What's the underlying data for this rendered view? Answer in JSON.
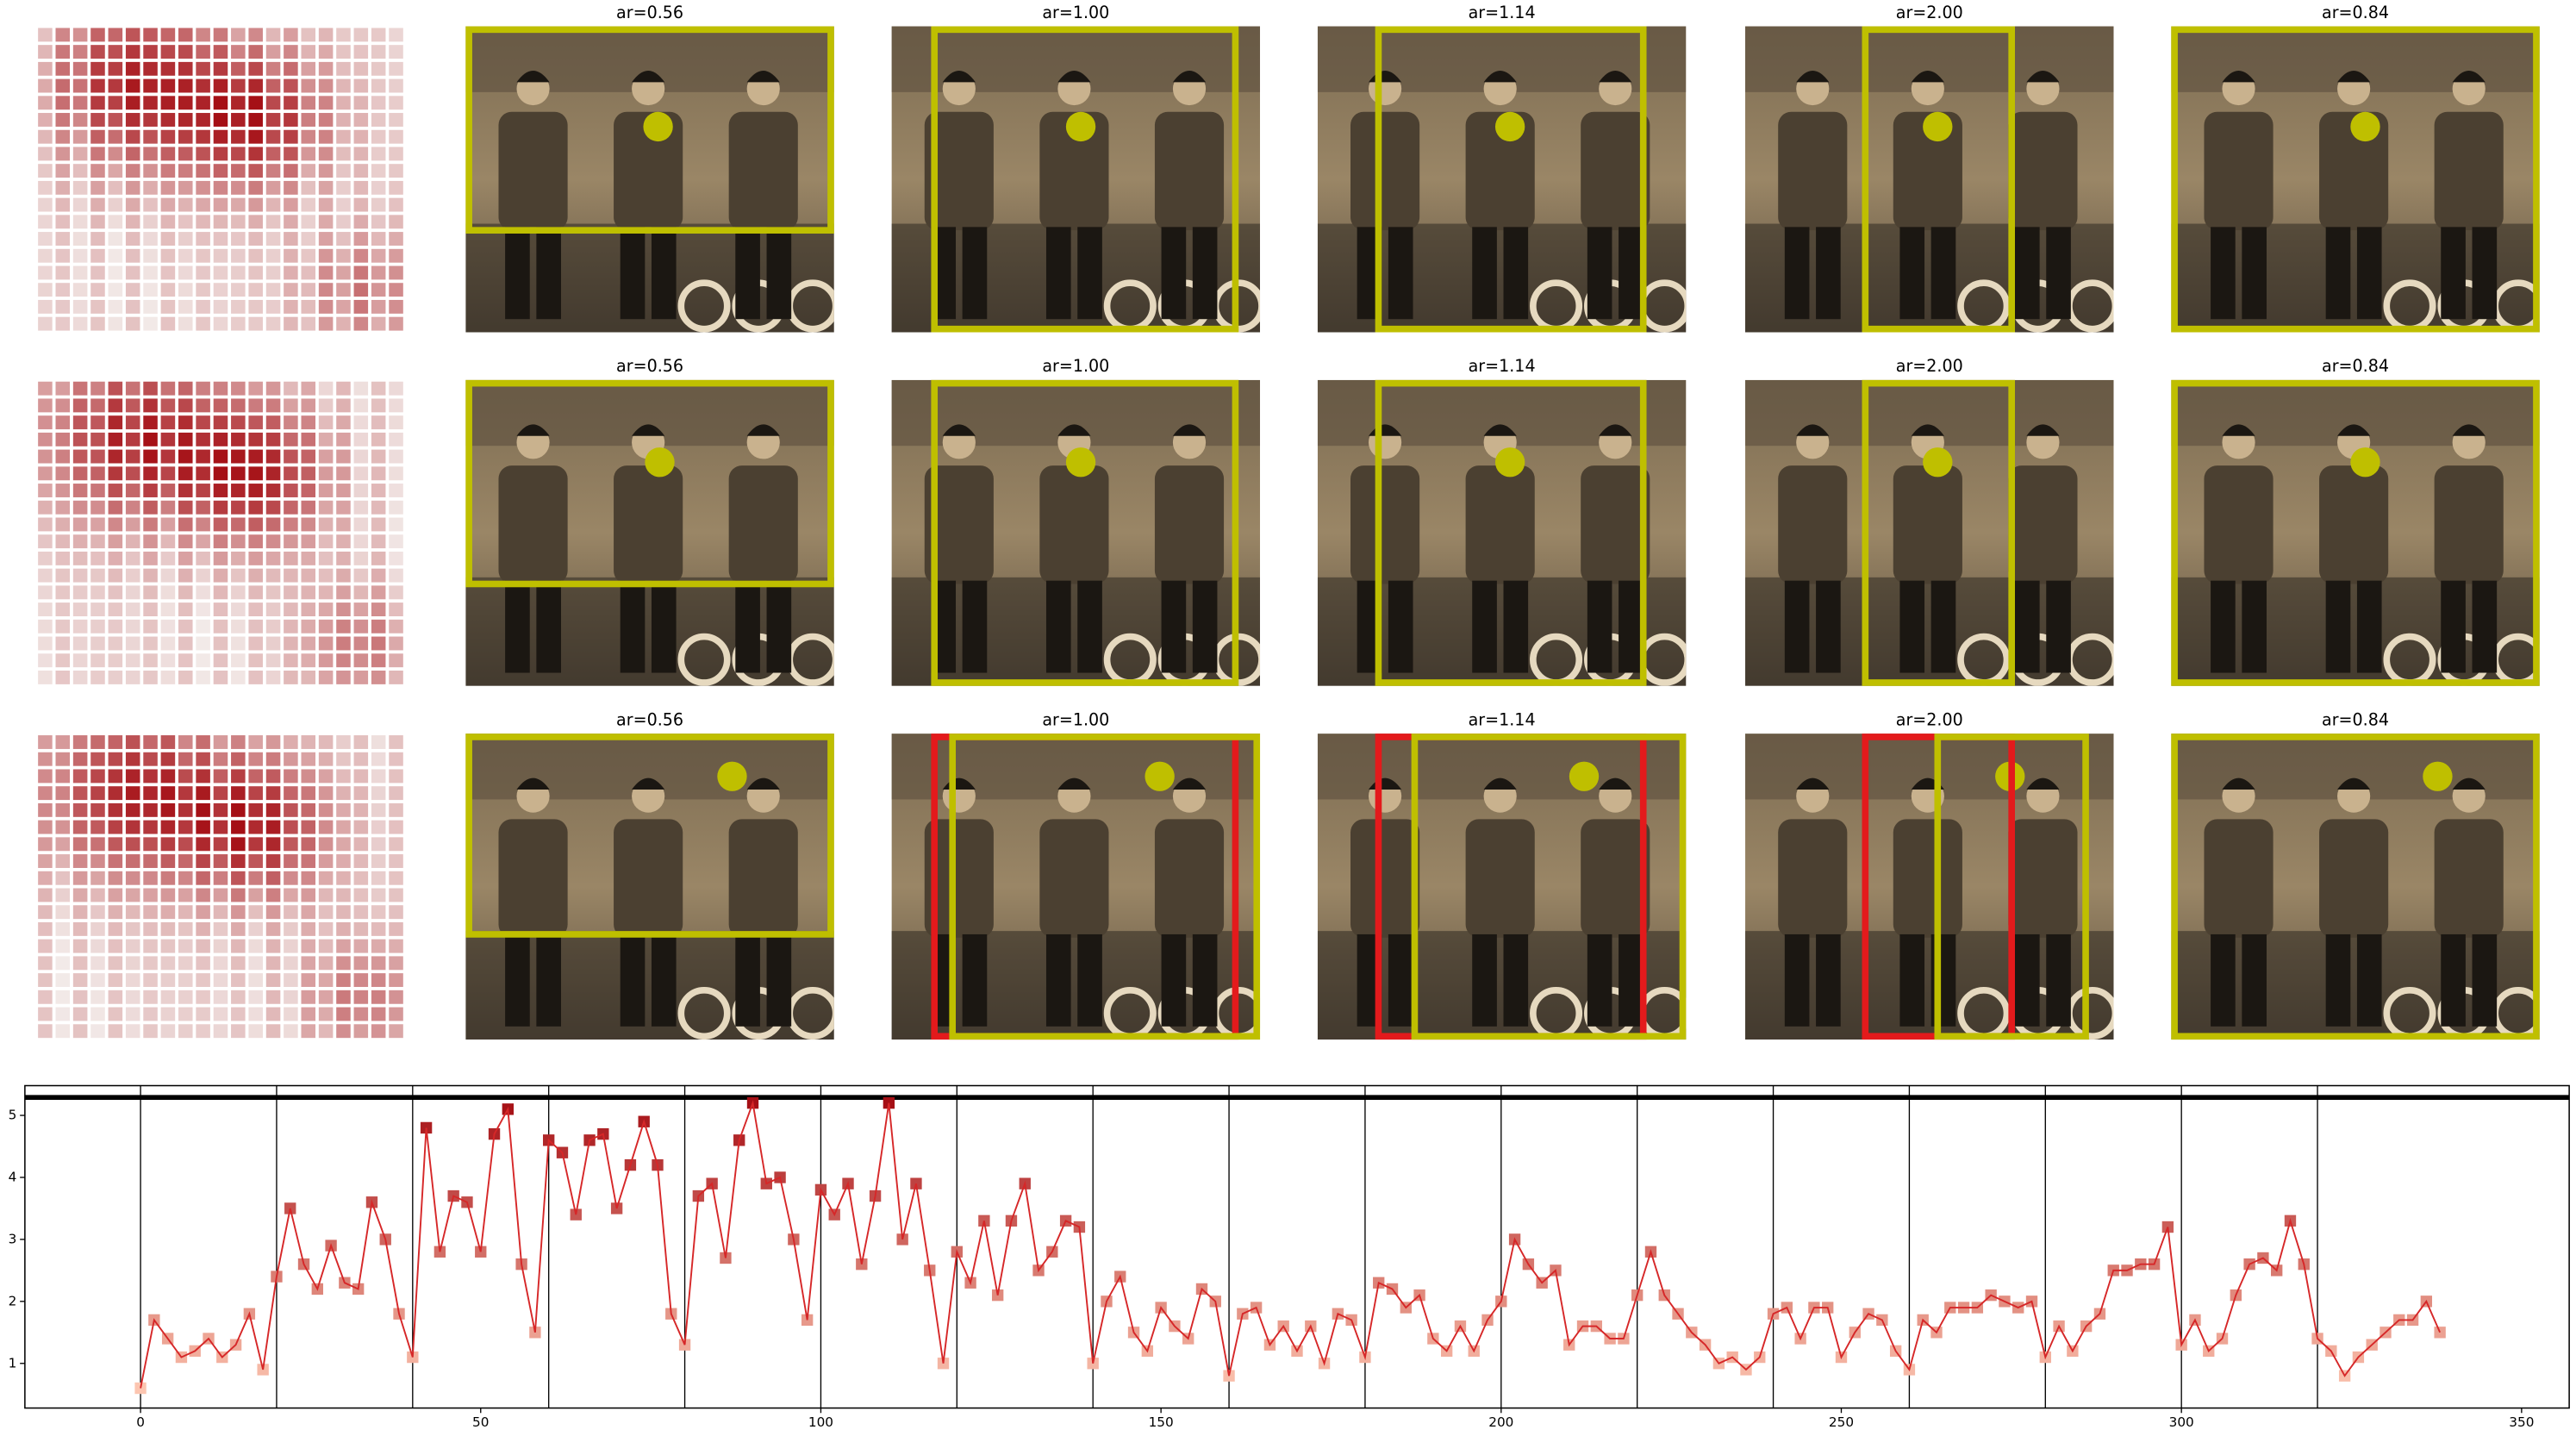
{
  "panels": {
    "titles": [
      [
        "ar=0.56",
        "ar=1.00",
        "ar=1.14",
        "ar=2.00",
        "ar=0.84"
      ],
      [
        "ar=0.56",
        "ar=1.00",
        "ar=1.14",
        "ar=2.00",
        "ar=0.84"
      ],
      [
        "ar=0.56",
        "ar=1.00",
        "ar=1.14",
        "ar=2.00",
        "ar=0.84"
      ]
    ]
  },
  "chart_data": {
    "type": "line",
    "x": [
      0,
      2,
      4,
      6,
      8,
      10,
      12,
      14,
      16,
      18,
      20,
      22,
      24,
      26,
      28,
      30,
      32,
      34,
      36,
      38,
      40,
      42,
      44,
      46,
      48,
      50,
      52,
      54,
      56,
      58,
      60,
      62,
      64,
      66,
      68,
      70,
      72,
      74,
      76,
      78,
      80,
      82,
      84,
      86,
      88,
      90,
      92,
      94,
      96,
      98,
      100,
      102,
      104,
      106,
      108,
      110,
      112,
      114,
      116,
      118,
      120,
      122,
      124,
      126,
      128,
      130,
      132,
      134,
      136,
      138,
      140,
      142,
      144,
      146,
      148,
      150,
      152,
      154,
      156,
      158,
      160,
      162,
      164,
      166,
      168,
      170,
      172,
      174,
      176,
      178,
      180,
      182,
      184,
      186,
      188,
      190,
      192,
      194,
      196,
      198,
      200,
      202,
      204,
      206,
      208,
      210,
      212,
      214,
      216,
      218,
      220,
      222,
      224,
      226,
      228,
      230,
      232,
      234,
      236,
      238,
      240,
      242,
      244,
      246,
      248,
      250,
      252,
      254,
      256,
      258,
      260,
      262,
      264,
      266,
      268,
      270,
      272,
      274,
      276,
      278,
      280,
      282,
      284,
      286,
      288,
      290,
      292,
      294,
      296,
      298,
      300,
      302,
      304,
      306,
      308,
      310,
      312,
      314,
      316,
      318,
      320,
      322,
      324,
      326,
      328,
      330,
      332,
      334,
      336,
      338
    ],
    "series": [
      {
        "color": "#d62728",
        "marker_colors": [
          "#fcc5b0",
          "#a50f15"
        ],
        "values": [
          0.6,
          1.7,
          1.4,
          1.1,
          1.2,
          1.4,
          1.1,
          1.3,
          1.8,
          0.9,
          2.4,
          3.5,
          2.6,
          2.2,
          2.9,
          2.3,
          2.2,
          3.6,
          3.0,
          1.8,
          1.1,
          4.8,
          2.8,
          3.7,
          3.6,
          2.8,
          4.7,
          5.1,
          2.6,
          1.5,
          4.6,
          4.4,
          3.4,
          4.6,
          4.7,
          3.5,
          4.2,
          4.9,
          4.2,
          1.8,
          1.3,
          3.7,
          3.9,
          2.7,
          4.6,
          5.2,
          3.9,
          4.0,
          3.0,
          1.7,
          3.8,
          3.4,
          3.9,
          2.6,
          3.7,
          5.2,
          3.0,
          3.9,
          2.5,
          1.0,
          2.8,
          2.3,
          3.3,
          2.1,
          3.3,
          3.9,
          2.5,
          2.8,
          3.3,
          3.2,
          1.0,
          2.0,
          2.4,
          1.5,
          1.2,
          1.9,
          1.6,
          1.4,
          2.2,
          2.0,
          0.8,
          1.8,
          1.9,
          1.3,
          1.6,
          1.2,
          1.6,
          1.0,
          1.8,
          1.7,
          1.1,
          2.3,
          2.2,
          1.9,
          2.1,
          1.4,
          1.2,
          1.6,
          1.2,
          1.7,
          2.0,
          3.0,
          2.6,
          2.3,
          2.5,
          1.3,
          1.6,
          1.6,
          1.4,
          1.4,
          2.1,
          2.8,
          2.1,
          1.8,
          1.5,
          1.3,
          1.0,
          1.1,
          0.9,
          1.1,
          1.8,
          1.9,
          1.4,
          1.9,
          1.9,
          1.1,
          1.5,
          1.8,
          1.7,
          1.2,
          0.9,
          1.7,
          1.5,
          1.9,
          1.9,
          1.9,
          2.1,
          2.0,
          1.9,
          2.0,
          1.1,
          1.6,
          1.2,
          1.6,
          1.8,
          2.5,
          2.5,
          2.6,
          2.6,
          3.2,
          1.3,
          1.7,
          1.2,
          1.4,
          2.1,
          2.6,
          2.7,
          2.5,
          3.3,
          2.6,
          1.4,
          1.2,
          0.8,
          1.1,
          1.3,
          1.5,
          1.7,
          1.7,
          2.0,
          1.5
        ]
      }
    ],
    "xlim": [
      -17,
      357
    ],
    "ylim": [
      0.28,
      5.48
    ],
    "xticks": [
      0,
      50,
      100,
      150,
      200,
      250,
      300,
      350
    ],
    "yticks": [
      1,
      2,
      3,
      4,
      5
    ],
    "vlines": [
      0,
      20,
      40,
      60,
      80,
      100,
      120,
      140,
      160,
      180,
      200,
      220,
      240,
      260,
      280,
      300,
      320
    ],
    "hline": 5.29
  }
}
